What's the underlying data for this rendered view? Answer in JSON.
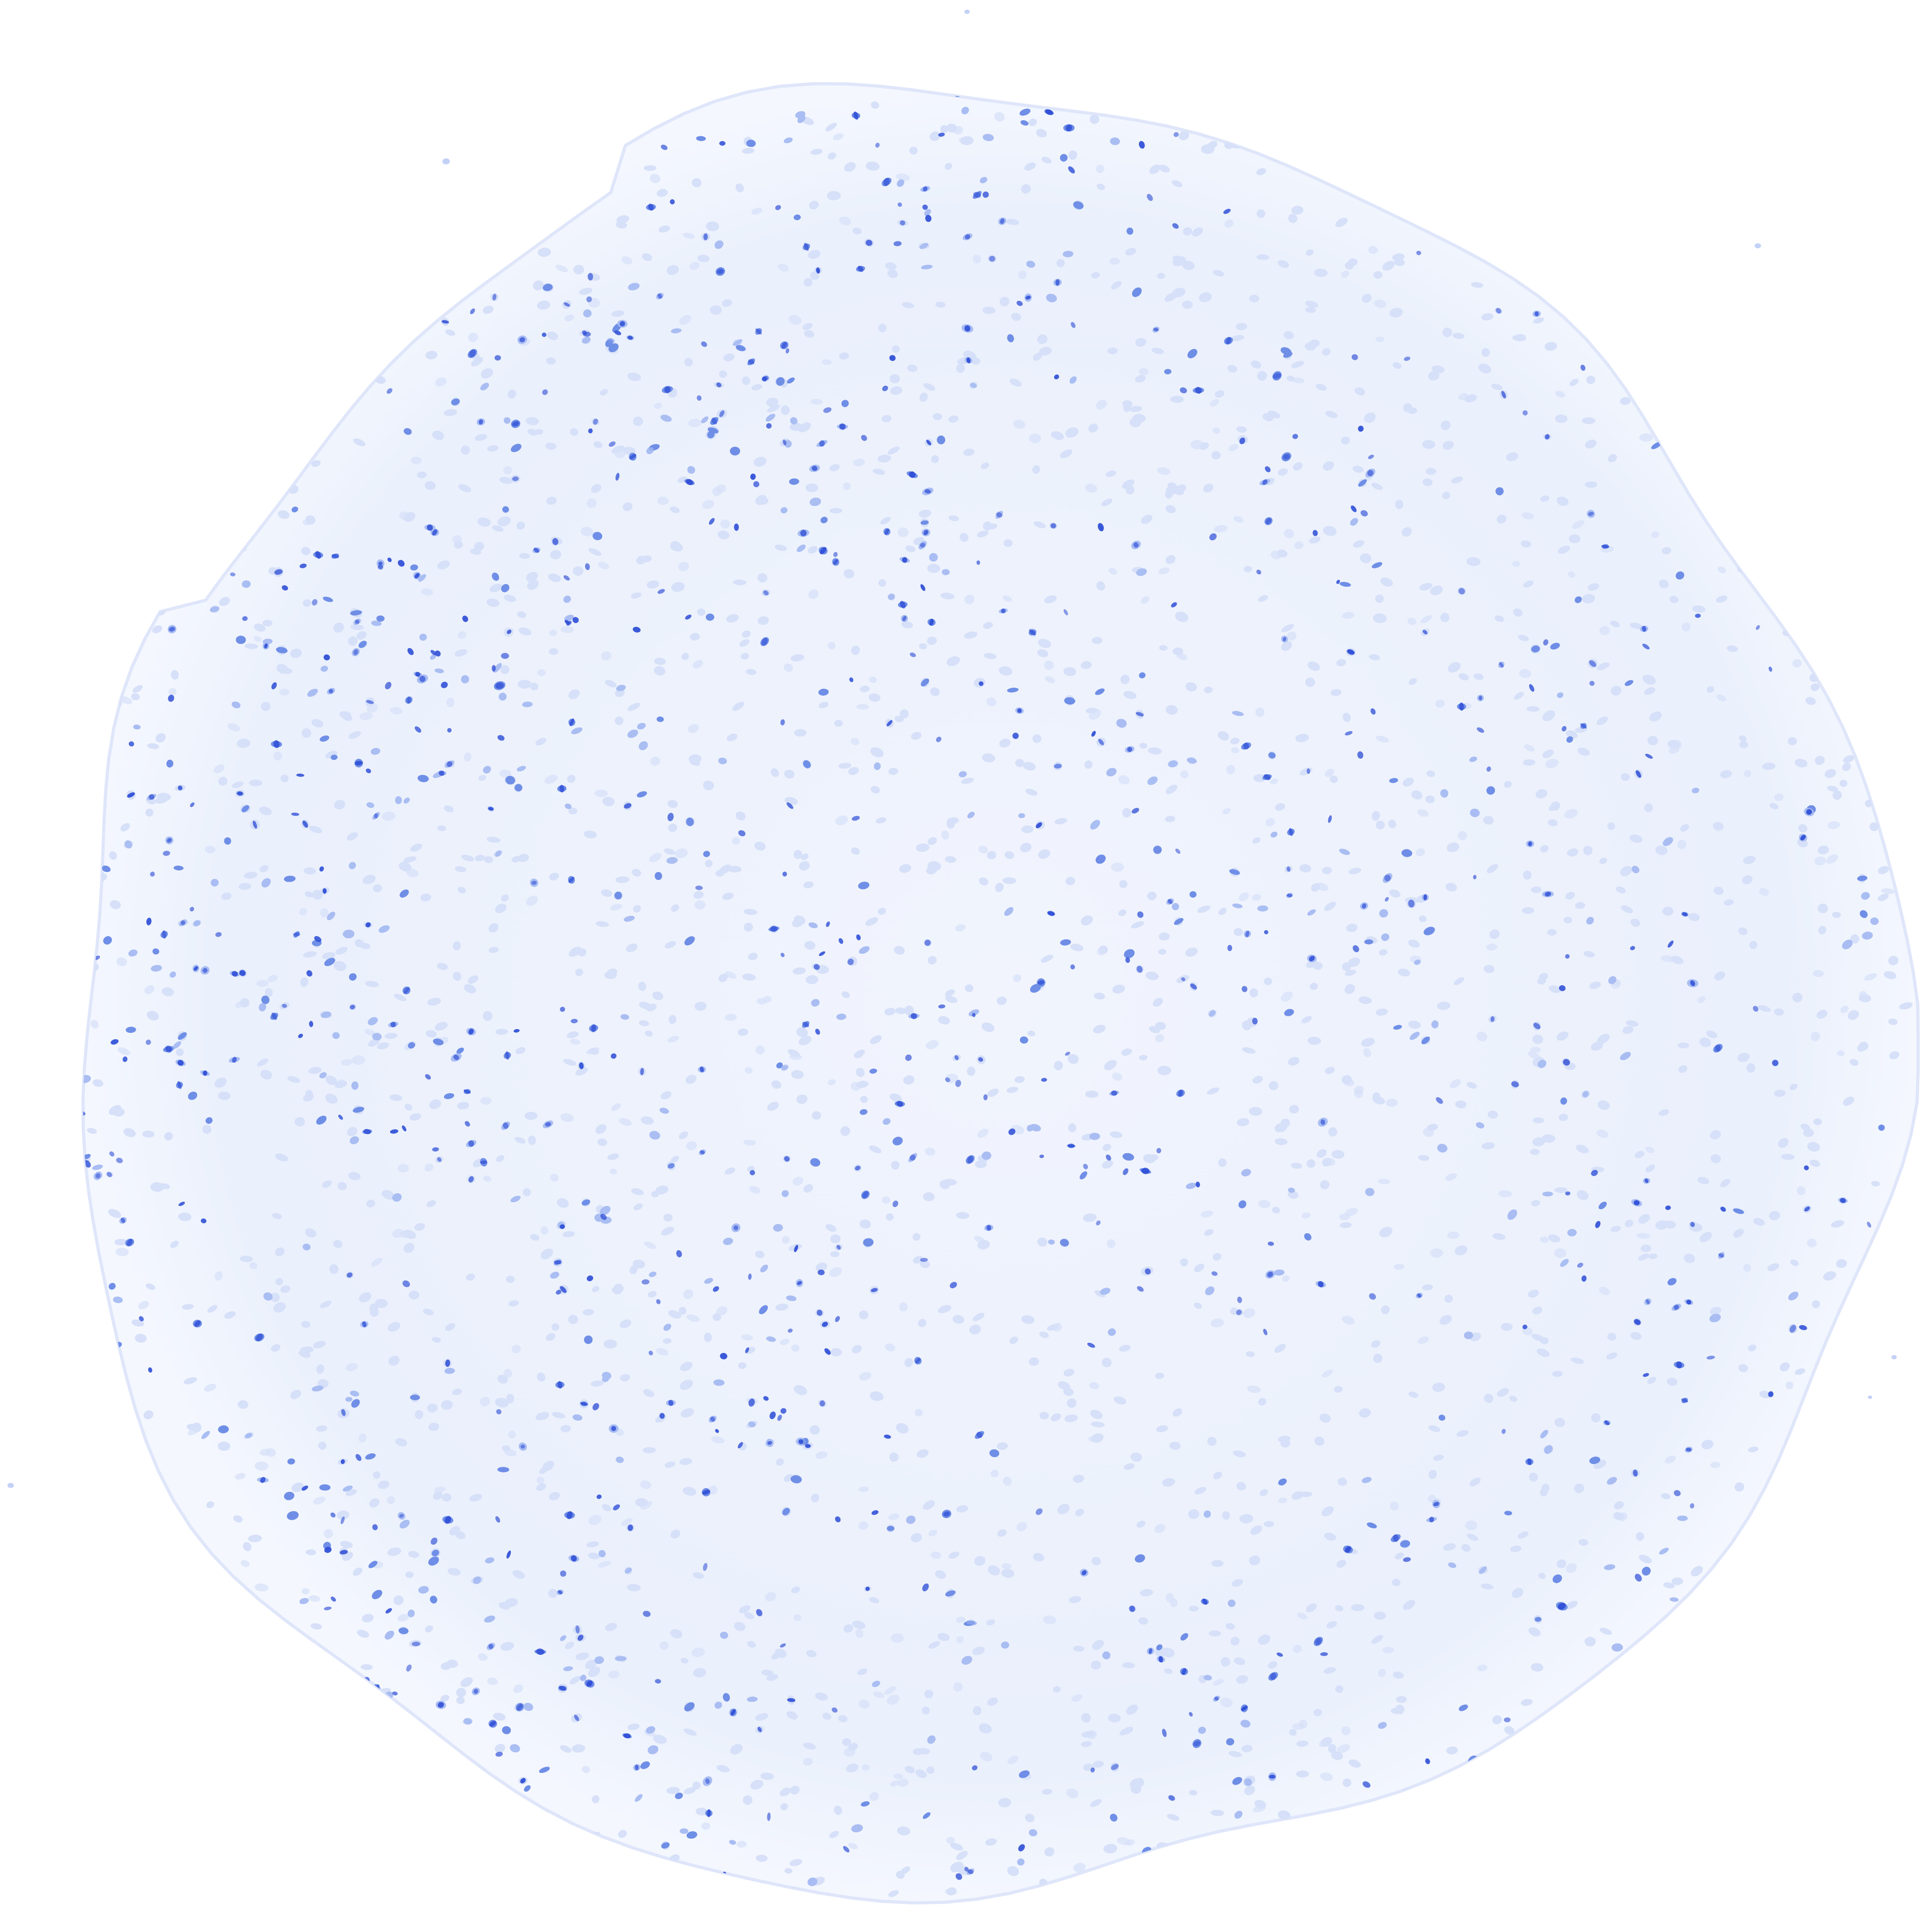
{
  "image": {
    "subject": "tissue-core",
    "background_color": "#ffffff",
    "colors": {
      "stain_dark": "#2f4fd6",
      "stain_mid": "#6f8ee6",
      "stain_light": "#a9bdf2",
      "stain_faint": "#d6e0f8",
      "core_wash": "#eef2fc"
    }
  }
}
